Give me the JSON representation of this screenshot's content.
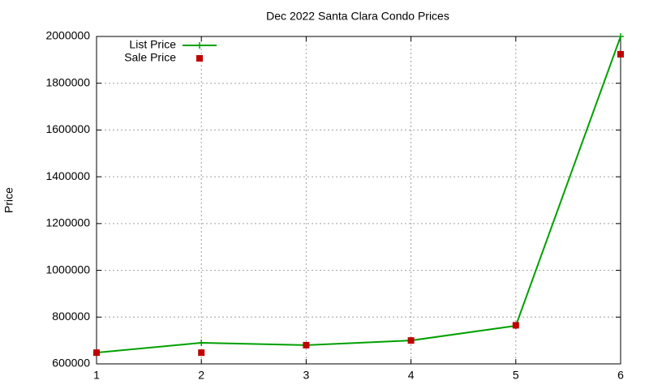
{
  "chart_data": {
    "type": "line",
    "title": "Dec 2022 Santa Clara Condo Prices",
    "y_label": "Price",
    "x": [
      1,
      2,
      3,
      4,
      5,
      6
    ],
    "series": [
      {
        "name": "List Price",
        "color": "#00a000",
        "mode": "lines+markers",
        "marker": "plus",
        "values": [
          648000,
          690000,
          680000,
          700000,
          763000,
          2000000
        ]
      },
      {
        "name": "Sale Price",
        "color": "#c00000",
        "mode": "markers",
        "marker": "square",
        "values": [
          648000,
          648000,
          680000,
          700000,
          765000,
          1924000
        ]
      }
    ],
    "xlim": [
      1,
      6
    ],
    "xticks": [
      1,
      2,
      3,
      4,
      5,
      6
    ],
    "ylim": [
      600000,
      2000000
    ],
    "yticks": [
      600000,
      800000,
      1000000,
      1200000,
      1400000,
      1600000,
      1800000,
      2000000
    ],
    "grid": true,
    "legend": "top-left"
  }
}
